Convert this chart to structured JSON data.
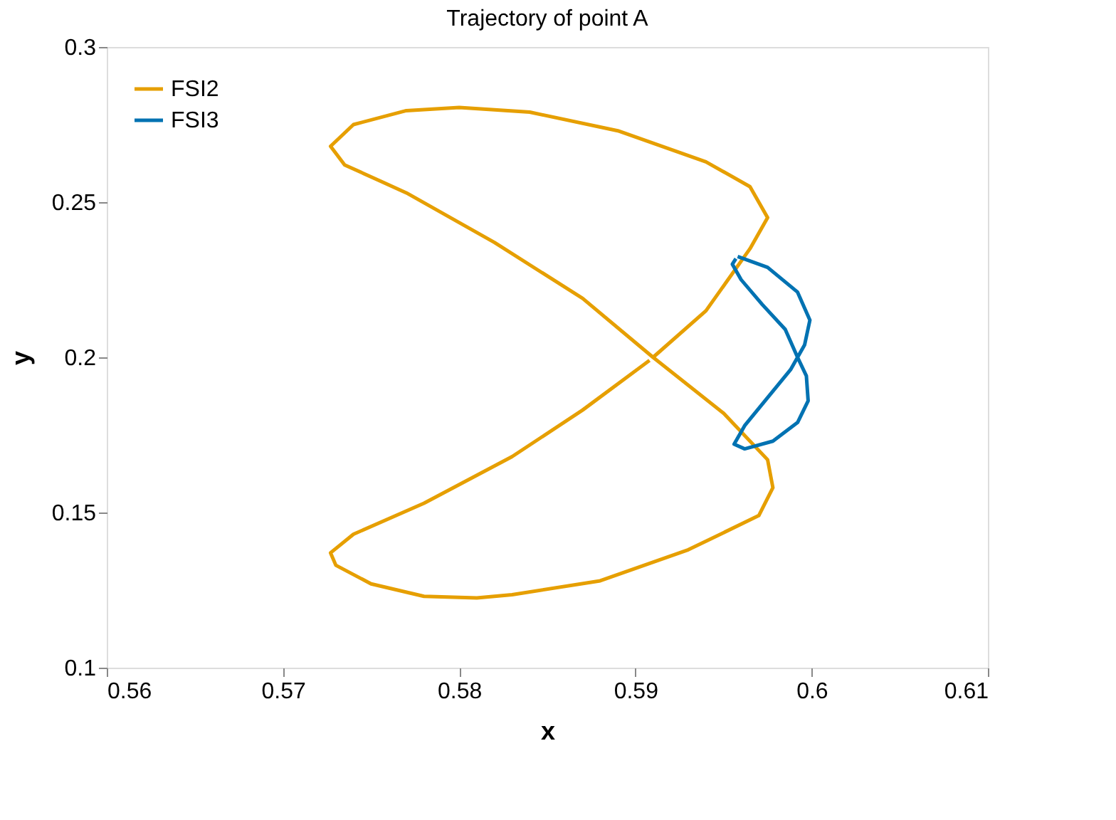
{
  "chart_data": {
    "type": "line",
    "title": "Trajectory of point A",
    "xlabel": "x",
    "ylabel": "y",
    "xlim": [
      0.56,
      0.61
    ],
    "xticks": [
      0.56,
      0.57,
      0.58,
      0.59,
      0.6,
      0.61
    ],
    "ylim": [
      0.1,
      0.3
    ],
    "yticks": [
      0.1,
      0.15,
      0.2,
      0.25,
      0.3
    ],
    "grid": false,
    "legend": "top left",
    "marker": "none",
    "line_style": "solid",
    "series": [
      {
        "name": "FSI2",
        "color": "#e69f00",
        "x": [
          0.591,
          0.594,
          0.5965,
          0.5975,
          0.5965,
          0.594,
          0.589,
          0.584,
          0.58,
          0.577,
          0.574,
          0.5727,
          0.5735,
          0.577,
          0.582,
          0.587,
          0.591,
          0.595,
          0.5975,
          0.5978,
          0.597,
          0.593,
          0.588,
          0.583,
          0.581,
          0.578,
          0.575,
          0.573,
          0.5727,
          0.574,
          0.578,
          0.583,
          0.587,
          0.5908
        ],
        "values": [
          0.2,
          0.215,
          0.235,
          0.245,
          0.255,
          0.263,
          0.273,
          0.279,
          0.2805,
          0.2795,
          0.275,
          0.268,
          0.262,
          0.253,
          0.237,
          0.219,
          0.2,
          0.182,
          0.167,
          0.158,
          0.149,
          0.138,
          0.128,
          0.1235,
          0.1225,
          0.123,
          0.127,
          0.133,
          0.137,
          0.143,
          0.153,
          0.168,
          0.183,
          0.199
        ]
      },
      {
        "name": "FSI3",
        "color": "#0072b2",
        "x": [
          0.5958,
          0.5975,
          0.5992,
          0.5999,
          0.5996,
          0.5992,
          0.5997,
          0.5998,
          0.5992,
          0.5978,
          0.5962,
          0.5956,
          0.5962,
          0.5975,
          0.5988,
          0.5992,
          0.5985,
          0.5972,
          0.596,
          0.5955,
          0.5957
        ],
        "values": [
          0.2325,
          0.229,
          0.221,
          0.212,
          0.204,
          0.2,
          0.194,
          0.186,
          0.179,
          0.173,
          0.1705,
          0.172,
          0.178,
          0.187,
          0.196,
          0.2,
          0.209,
          0.217,
          0.225,
          0.23,
          0.2318
        ]
      }
    ]
  }
}
